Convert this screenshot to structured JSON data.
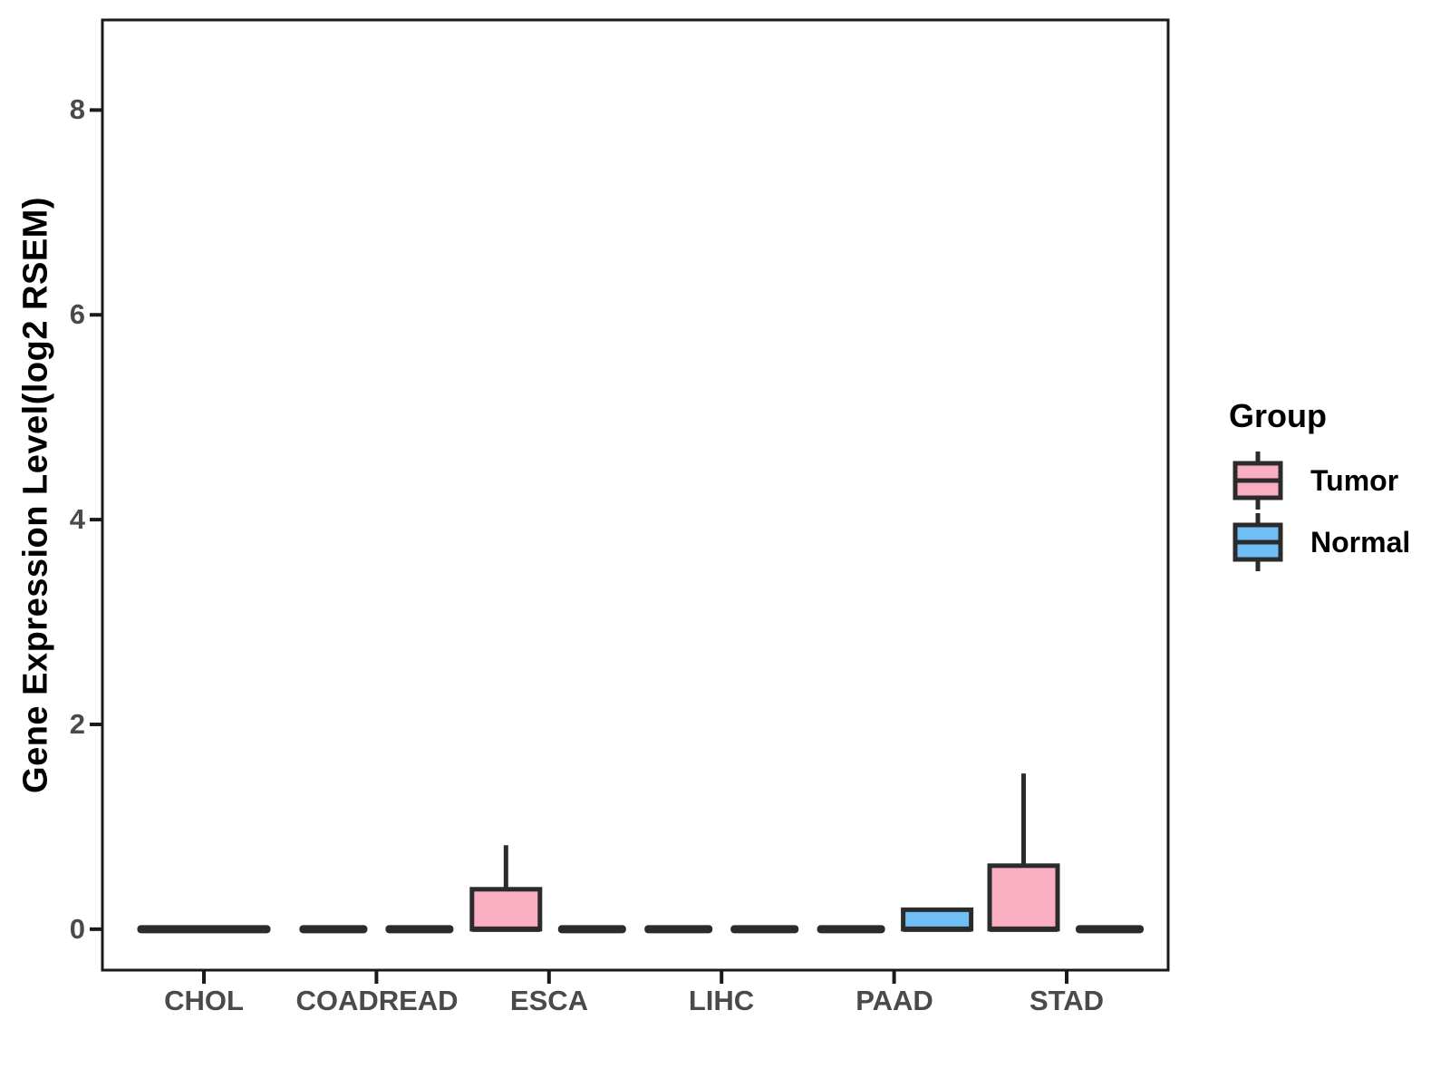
{
  "chart_data": {
    "type": "boxplot",
    "title": "",
    "xlabel": "",
    "ylabel": "Gene Expression Level(log2 RSEM)",
    "ylim": [
      -0.4,
      8.88
    ],
    "yticks": [
      0,
      2,
      4,
      6,
      8
    ],
    "ytick_labels": [
      "0",
      "2",
      "4",
      "6",
      "8"
    ],
    "categories": [
      "CHOL",
      "COADREAD",
      "ESCA",
      "LIHC",
      "PAAD",
      "STAD"
    ],
    "grid": false,
    "legend": {
      "title": "Group",
      "position": "right",
      "entries": [
        {
          "label": "Tumor",
          "color": "#FAAEC1"
        },
        {
          "label": "Normal",
          "color": "#6FBFF4"
        }
      ]
    },
    "boxes": [
      {
        "category": "CHOL",
        "group": "Tumor",
        "slot": "single",
        "whisker_low": 0,
        "q1": 0,
        "median": 0,
        "q3": 0,
        "whisker_high": 0
      },
      {
        "category": "COADREAD",
        "group": "Tumor",
        "slot": "left",
        "whisker_low": 0,
        "q1": 0,
        "median": 0,
        "q3": 0,
        "whisker_high": 0
      },
      {
        "category": "COADREAD",
        "group": "Normal",
        "slot": "right",
        "whisker_low": 0,
        "q1": 0,
        "median": 0,
        "q3": 0,
        "whisker_high": 0
      },
      {
        "category": "ESCA",
        "group": "Tumor",
        "slot": "left",
        "whisker_low": 0,
        "q1": 0,
        "median": 0,
        "q3": 0.39,
        "whisker_high": 0.82
      },
      {
        "category": "ESCA",
        "group": "Normal",
        "slot": "right",
        "whisker_low": 0,
        "q1": 0,
        "median": 0,
        "q3": 0,
        "whisker_high": 0
      },
      {
        "category": "LIHC",
        "group": "Tumor",
        "slot": "left",
        "whisker_low": 0,
        "q1": 0,
        "median": 0,
        "q3": 0,
        "whisker_high": 0
      },
      {
        "category": "LIHC",
        "group": "Normal",
        "slot": "right",
        "whisker_low": 0,
        "q1": 0,
        "median": 0,
        "q3": 0,
        "whisker_high": 0
      },
      {
        "category": "PAAD",
        "group": "Tumor",
        "slot": "left",
        "whisker_low": 0,
        "q1": 0,
        "median": 0,
        "q3": 0,
        "whisker_high": 0
      },
      {
        "category": "PAAD",
        "group": "Normal",
        "slot": "right",
        "whisker_low": 0,
        "q1": 0,
        "median": 0,
        "q3": 0.19,
        "whisker_high": 0.19
      },
      {
        "category": "STAD",
        "group": "Tumor",
        "slot": "left",
        "whisker_low": 0,
        "q1": 0,
        "median": 0,
        "q3": 0.62,
        "whisker_high": 1.52
      },
      {
        "category": "STAD",
        "group": "Normal",
        "slot": "right",
        "whisker_low": 0,
        "q1": 0,
        "median": 0,
        "q3": 0,
        "whisker_high": 0
      }
    ],
    "colors": {
      "box_outline": "#2B2B2B",
      "flat_dash": "#2B2B2B",
      "axis": "#1A1A1A",
      "tick_label": "#4A4A4A"
    }
  }
}
